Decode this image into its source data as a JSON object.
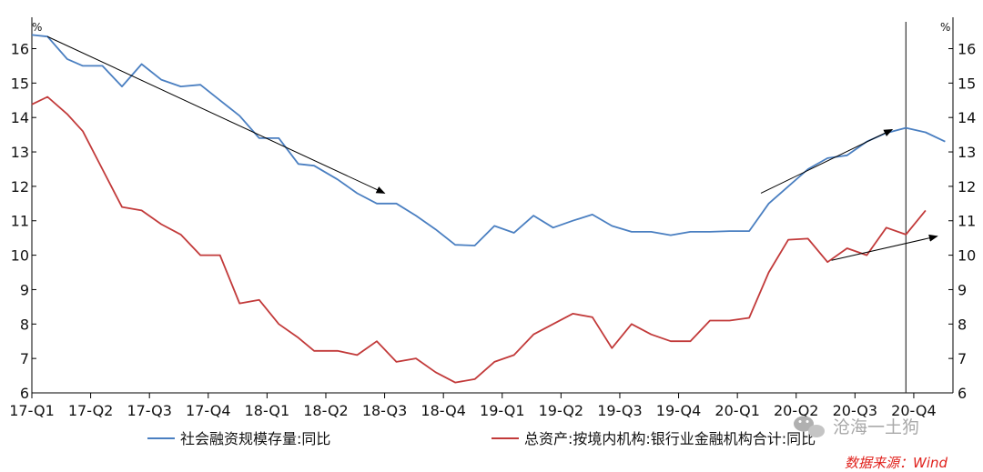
{
  "chart_data": {
    "type": "line",
    "y_unit_left": "%",
    "y_unit_right": "%",
    "ylim": [
      6,
      16.7
    ],
    "y_ticks": [
      6,
      7,
      8,
      9,
      10,
      11,
      12,
      13,
      14,
      15,
      16
    ],
    "y_tick_labels": [
      "6",
      "7",
      "8",
      "9",
      "10",
      "11",
      "12",
      "13",
      "14",
      "15",
      "16"
    ],
    "x_tick_labels": [
      "17-Q1",
      "17-Q2",
      "17-Q3",
      "17-Q4",
      "18-Q1",
      "18-Q2",
      "18-Q3",
      "18-Q4",
      "19-Q1",
      "19-Q2",
      "19-Q3",
      "19-Q4",
      "20-Q1",
      "20-Q2",
      "20-Q3",
      "20-Q4"
    ],
    "x_label_months": [
      0,
      3,
      6,
      9,
      12,
      15,
      18,
      21,
      24,
      27,
      30,
      33,
      36,
      39,
      42,
      45
    ],
    "x_range_months": [
      0,
      47
    ],
    "vertical_line_month": 44.6,
    "grid": false,
    "legend_position": "bottom",
    "series": [
      {
        "name": "社会融资规模存量:同比",
        "color": "#4a7fc1",
        "x": [
          0,
          0.8,
          1.8,
          2.6,
          3.6,
          4.6,
          5.6,
          6.6,
          7.6,
          8.6,
          9.6,
          10.6,
          11.6,
          12.1,
          12.6,
          13.6,
          14.4,
          15.6,
          16.6,
          17.6,
          18.6,
          19.6,
          20.6,
          21.6,
          22.6,
          23.6,
          24.6,
          25.6,
          26.6,
          27.6,
          28.6,
          29.6,
          30.6,
          31.6,
          32.6,
          33.6,
          34.6,
          35.6,
          36.6,
          37.6,
          38.6,
          39.6,
          40.6,
          41.6,
          42.6,
          43.6,
          44.6,
          45.6,
          46.6
        ],
        "values": [
          16.4,
          16.35,
          15.7,
          15.5,
          15.5,
          14.9,
          15.55,
          15.1,
          14.9,
          14.95,
          14.5,
          14.05,
          13.4,
          13.4,
          13.4,
          12.65,
          12.6,
          12.2,
          11.8,
          11.5,
          11.5,
          11.15,
          10.75,
          10.3,
          10.28,
          10.85,
          10.65,
          11.15,
          10.8,
          11.0,
          11.18,
          10.85,
          10.68,
          10.68,
          10.58,
          10.68,
          10.68,
          10.7,
          10.7,
          11.5,
          12.0,
          12.5,
          12.82,
          12.9,
          13.3,
          13.55,
          13.7,
          13.57,
          13.3
        ]
      },
      {
        "name": "总资产:按境内机构:银行业金融机构合计:同比",
        "color": "#c23a3a",
        "x": [
          0,
          0.8,
          1.8,
          2.6,
          3.6,
          4.6,
          5.6,
          6.6,
          7.6,
          8.6,
          9.6,
          10.6,
          11.6,
          12.6,
          13.6,
          14.4,
          15.6,
          16.6,
          17.6,
          18.6,
          19.6,
          20.6,
          21.6,
          22.6,
          23.6,
          24.6,
          25.6,
          26.6,
          27.6,
          28.6,
          29.6,
          30.6,
          31.6,
          32.6,
          33.6,
          34.6,
          35.6,
          36.6,
          37.6,
          38.6,
          39.6,
          40.6,
          41.6,
          42.6,
          43.6,
          44.6,
          45.6
        ],
        "values": [
          14.38,
          14.6,
          14.1,
          13.6,
          12.5,
          11.4,
          11.3,
          10.9,
          10.6,
          10.0,
          10.0,
          8.6,
          8.7,
          8.0,
          7.6,
          7.22,
          7.22,
          7.1,
          7.5,
          6.9,
          7.0,
          6.6,
          6.3,
          6.4,
          6.9,
          7.1,
          7.7,
          8.0,
          8.3,
          8.2,
          7.3,
          8.0,
          7.7,
          7.5,
          7.5,
          8.1,
          8.1,
          8.18,
          9.5,
          10.45,
          10.48,
          9.8,
          10.2,
          10.0,
          10.8,
          10.6,
          11.3
        ]
      }
    ],
    "annotations": [
      {
        "type": "arrow",
        "from": [
          0.8,
          16.35
        ],
        "to": [
          18.0,
          11.8
        ]
      },
      {
        "type": "arrow",
        "from": [
          37.2,
          11.8
        ],
        "to": [
          43.9,
          13.65
        ]
      },
      {
        "type": "arrow",
        "from": [
          40.8,
          9.85
        ],
        "to": [
          46.2,
          10.55
        ]
      }
    ]
  },
  "source_text": "数据来源：Wind",
  "watermark_text": "沧海一土狗"
}
